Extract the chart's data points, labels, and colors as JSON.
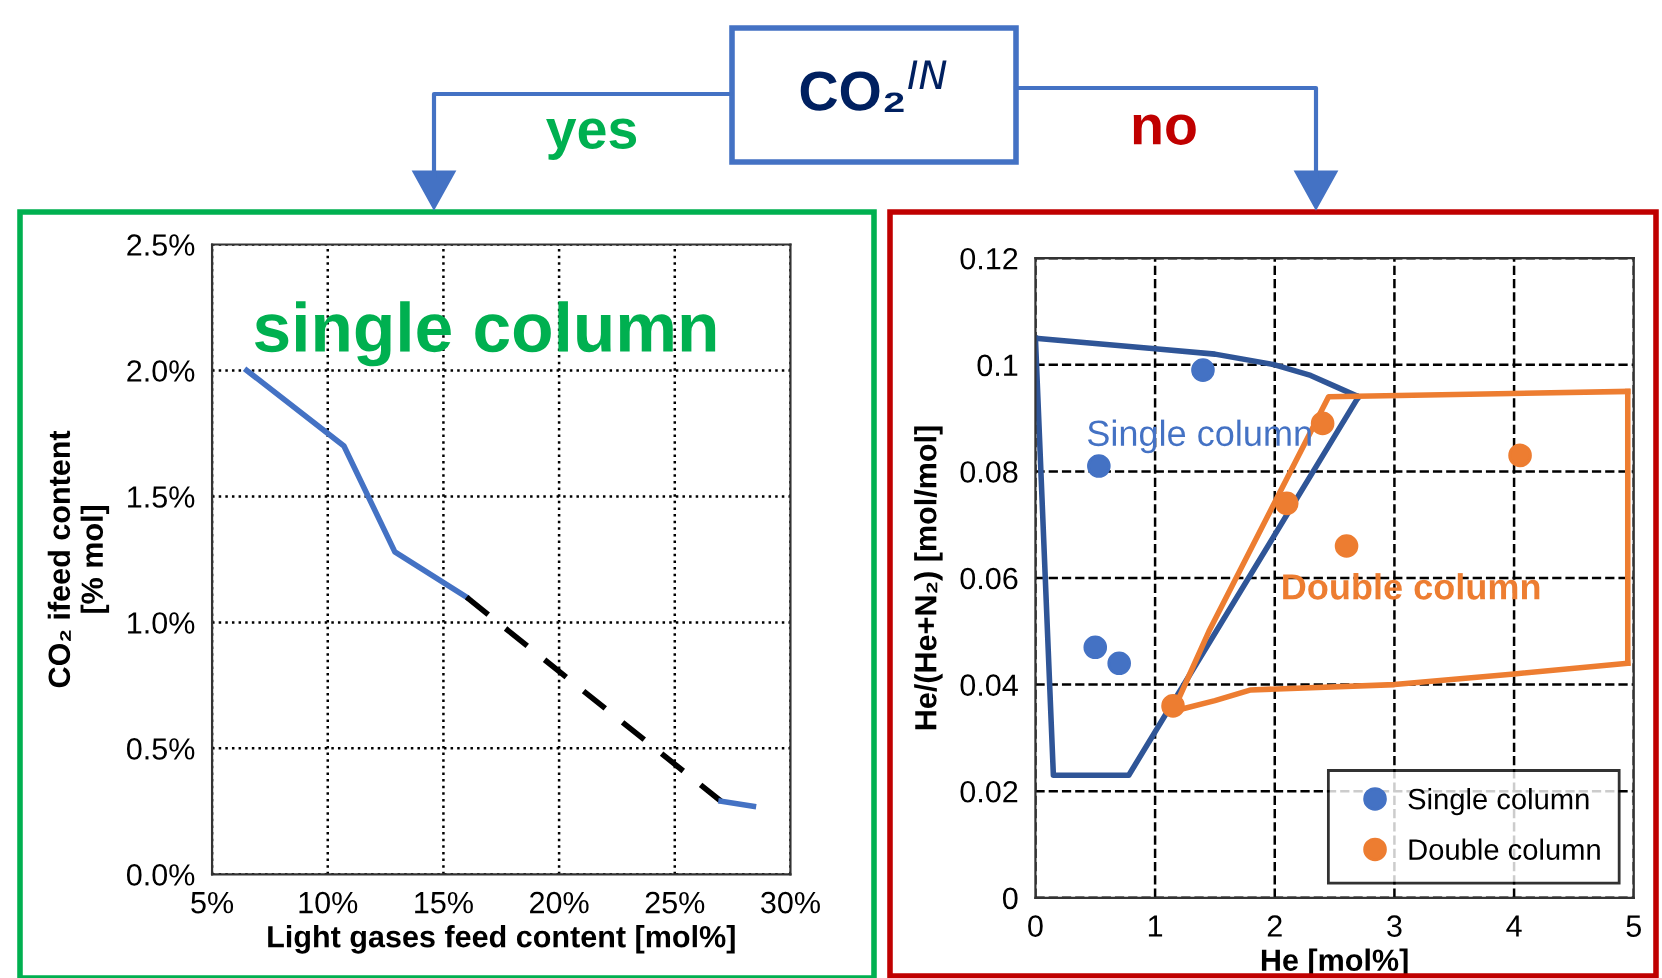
{
  "chart_data": [
    {
      "type": "line",
      "xlabel": "Light gases feed content [mol%]",
      "ylabel": "CO₂ ifeed content\n[% mol]",
      "annotations": [
        "single column",
        "CO₂$^{IN}$",
        "yes"
      ],
      "series": [
        {
          "color": "#4472c4",
          "line_style": "solid",
          "x": [
            6.5,
            10.7,
            12.9,
            16.0
          ],
          "values": [
            2.0,
            1.7,
            1.28,
            1.1
          ]
        },
        {
          "color": "#000000",
          "line_style": "dashed",
          "x": [
            16.0,
            27.0
          ],
          "values": [
            1.1,
            0.29
          ]
        },
        {
          "color": "#4472c4",
          "line_style": "solid",
          "x": [
            27.0,
            28.4
          ],
          "values": [
            0.29,
            0.27
          ]
        }
      ],
      "xlim": [
        5,
        30
      ],
      "xticks": [
        {
          "value": 5,
          "label": "5%"
        },
        {
          "value": 10,
          "label": "10%"
        },
        {
          "value": 15,
          "label": "15%"
        },
        {
          "value": 20,
          "label": "20%"
        },
        {
          "value": 25,
          "label": "25%"
        },
        {
          "value": 30,
          "label": "30%"
        }
      ],
      "ylim": [
        0,
        2.5
      ],
      "yticks": [
        {
          "value": 0,
          "label": "0.0%"
        },
        {
          "value": 0.5,
          "label": "0.5%"
        },
        {
          "value": 1.0,
          "label": "1.0%"
        },
        {
          "value": 1.5,
          "label": "1.5%"
        },
        {
          "value": 2.0,
          "label": "2.0%"
        },
        {
          "value": 2.5,
          "label": "2.5%"
        }
      ],
      "grid": true,
      "legend": false
    },
    {
      "type": "scatter",
      "xlabel": "He [mol%]",
      "ylabel": "He/(He+N₂) [mol/mol]",
      "annotations": [
        "no",
        "Single column",
        "Double column"
      ],
      "series": [
        {
          "name": "Single column",
          "color": "#4472c4",
          "marker": "circle",
          "x": [
            1.4,
            0.53,
            0.5,
            0.7
          ],
          "values": [
            0.099,
            0.081,
            0.047,
            0.044
          ]
        },
        {
          "name": "Double column",
          "color": "#ed7d31",
          "marker": "circle",
          "x": [
            2.4,
            2.1,
            2.6,
            4.05,
            1.15
          ],
          "values": [
            0.089,
            0.074,
            0.066,
            0.083,
            0.036
          ]
        },
        {
          "type": "line",
          "color": "#2f5597",
          "x": [
            0,
            1,
            1.5,
            2,
            2.3,
            2.5,
            2.7
          ],
          "values": [
            0.105,
            0.103,
            0.102,
            0.1,
            0.098,
            0.096,
            0.094
          ]
        },
        {
          "type": "line",
          "color": "#2f5597",
          "x": [
            0,
            0.15,
            0.78,
            2.7
          ],
          "values": [
            0.105,
            0.023,
            0.023,
            0.094
          ]
        },
        {
          "type": "line",
          "color": "#ed7d31",
          "x": [
            1.15,
            1.45,
            2.45,
            4.95
          ],
          "values": [
            0.035,
            0.05,
            0.094,
            0.095
          ]
        },
        {
          "type": "line",
          "color": "#ed7d31",
          "x": [
            1.15,
            1.5,
            1.8,
            3,
            4,
            4.95
          ],
          "values": [
            0.035,
            0.037,
            0.039,
            0.04,
            0.042,
            0.044
          ]
        },
        {
          "type": "line",
          "color": "#ed7d31",
          "x": [
            4.95,
            4.95
          ],
          "values": [
            0.044,
            0.095
          ]
        }
      ],
      "xlim": [
        0,
        5
      ],
      "xticks": [
        0,
        1,
        2,
        3,
        4,
        5
      ],
      "ylim": [
        0,
        0.12
      ],
      "yticks": [
        0,
        0.02,
        0.04,
        0.06,
        0.08,
        0.1,
        0.12
      ],
      "grid": true,
      "legend": "bottom right"
    }
  ]
}
